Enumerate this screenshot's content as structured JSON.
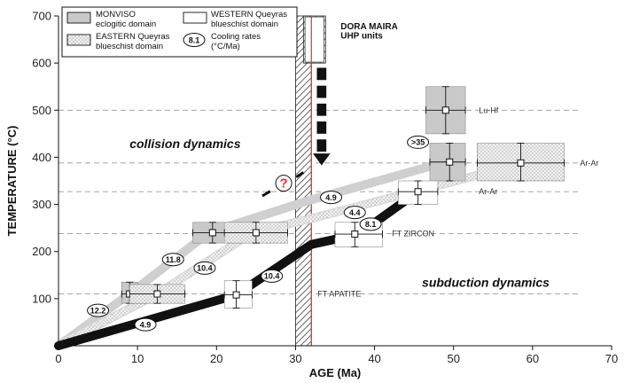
{
  "chart_data": {
    "type": "scatter",
    "xlabel": "AGE (Ma)",
    "ylabel": "TEMPERATURE (°C)",
    "xlim": [
      0,
      70
    ],
    "ylim": [
      0,
      700
    ],
    "x_ticks": [
      0,
      10,
      20,
      30,
      40,
      50,
      60,
      70
    ],
    "y_ticks": [
      100,
      200,
      300,
      400,
      500,
      600,
      700
    ],
    "grid": false,
    "colors": {
      "monviso": "#c9c9c9",
      "western": "#ffffff",
      "eastern": "#e6e6e6",
      "eastern_path": "#d9d9d9",
      "western_path": "#111111",
      "monviso_path": "#cfcfcf",
      "red_line": "#e03030",
      "question": "#e03030"
    },
    "legend": {
      "position": "top-left",
      "entries": [
        {
          "key": "monviso",
          "text1": "MONVISO",
          "text2": "eclogitic domain"
        },
        {
          "key": "western",
          "text1": "WESTERN Queyras",
          "text2": "blueschist domain"
        },
        {
          "key": "eastern",
          "text1": "EASTERN Queyras",
          "text2": "blueschist domain"
        },
        {
          "key": "rate",
          "badge": "8.1",
          "text1": "Cooling rates",
          "text2": "(°C/Ma)"
        }
      ]
    },
    "reference_lines": [
      {
        "y": 500,
        "label": "Lu-Hf"
      },
      {
        "y": 388,
        "label": "Ar-Ar"
      },
      {
        "y": 327,
        "label": "Ar-Ar"
      },
      {
        "y": 238,
        "label": "FT ZIRCON"
      },
      {
        "y": 110,
        "label": "FT APATITE"
      }
    ],
    "dora_maira": {
      "line1": "DORA MAIRA",
      "line2": "UHP units",
      "age_range": [
        30,
        32
      ],
      "box_top_temp": 700,
      "box_bottom_temp": 600
    },
    "red_line_age": 32,
    "paths": [
      {
        "domain": "monviso",
        "points": [
          [
            0,
            0
          ],
          [
            9,
            110
          ],
          [
            19,
            240
          ],
          [
            32,
            310
          ],
          [
            49,
            390
          ]
        ]
      },
      {
        "domain": "eastern",
        "points": [
          [
            0,
            0
          ],
          [
            12.5,
            110
          ],
          [
            24.5,
            240
          ],
          [
            32,
            270
          ],
          [
            45,
            327
          ],
          [
            59,
            388
          ]
        ]
      },
      {
        "domain": "western",
        "points": [
          [
            0,
            0
          ],
          [
            22.5,
            108
          ],
          [
            32,
            215
          ],
          [
            38,
            237
          ],
          [
            45.5,
            327
          ]
        ]
      }
    ],
    "points": [
      {
        "domain": "monviso",
        "x": 9,
        "y": 110,
        "xerr": [
          8,
          10
        ],
        "yerr": [
          90,
          135
        ]
      },
      {
        "domain": "monviso",
        "x": 19.5,
        "y": 240,
        "xerr": [
          17,
          22
        ],
        "yerr": [
          218,
          262
        ]
      },
      {
        "domain": "monviso",
        "x": 49,
        "y": 500,
        "xerr": [
          46.5,
          51.5
        ],
        "yerr": [
          450,
          550
        ]
      },
      {
        "domain": "monviso",
        "x": 49.5,
        "y": 390,
        "xerr": [
          47,
          51.5
        ],
        "yerr": [
          350,
          430
        ]
      },
      {
        "domain": "eastern",
        "x": 12.5,
        "y": 110,
        "xerr": [
          9,
          16
        ],
        "yerr": [
          90,
          130
        ]
      },
      {
        "domain": "eastern",
        "x": 25,
        "y": 240,
        "xerr": [
          21,
          29
        ],
        "yerr": [
          218,
          262
        ]
      },
      {
        "domain": "eastern",
        "x": 58.5,
        "y": 388,
        "xerr": [
          53,
          64
        ],
        "yerr": [
          350,
          430
        ]
      },
      {
        "domain": "western",
        "x": 22.5,
        "y": 108,
        "xerr": [
          21,
          24.5
        ],
        "yerr": [
          80,
          138
        ]
      },
      {
        "domain": "western",
        "x": 37.5,
        "y": 237,
        "xerr": [
          35,
          41
        ],
        "yerr": [
          210,
          262
        ]
      },
      {
        "domain": "western",
        "x": 45.5,
        "y": 327,
        "xerr": [
          43,
          48
        ],
        "yerr": [
          300,
          350
        ]
      }
    ],
    "cooling_rates": [
      {
        "label": "12.2",
        "x": 5,
        "y": 75
      },
      {
        "label": "4.9",
        "x": 11,
        "y": 45
      },
      {
        "label": "11.8",
        "x": 14.5,
        "y": 183
      },
      {
        "label": "10.4",
        "x": 18.5,
        "y": 165
      },
      {
        "label": "10.4",
        "x": 27,
        "y": 148
      },
      {
        "label": "4.9",
        "x": 34.5,
        "y": 315
      },
      {
        "label": "4.4",
        "x": 37.5,
        "y": 283
      },
      {
        "label": "8.1",
        "x": 39.5,
        "y": 258
      },
      {
        "label": ">35",
        "x": 45.5,
        "y": 432
      }
    ],
    "question_mark": {
      "label": "?",
      "x": 28.5,
      "y": 345
    },
    "annotations": [
      {
        "text": "collision dynamics",
        "x": 9,
        "y": 420
      },
      {
        "text": "subduction dynamics",
        "x": 46,
        "y": 125
      }
    ]
  }
}
